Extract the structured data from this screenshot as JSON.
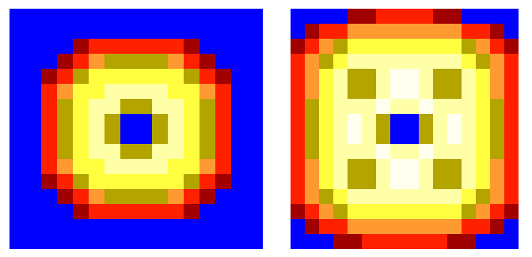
{
  "chart_data": [
    {
      "type": "heatmap",
      "tick_labels": false,
      "zlim": [
        0,
        7
      ],
      "colors": [
        "#0000ff",
        "#a00000",
        "#ff2000",
        "#ff9a30",
        "#b3a400",
        "#ffff40",
        "#ffffa8",
        "#fffff0"
      ],
      "z": [
        [
          0,
          0,
          0,
          0,
          0,
          0,
          0,
          0,
          0,
          0,
          0,
          0,
          0,
          0,
          0,
          0
        ],
        [
          0,
          0,
          0,
          0,
          0,
          0,
          0,
          0,
          0,
          0,
          0,
          0,
          0,
          0,
          0,
          0
        ],
        [
          0,
          0,
          0,
          0,
          1,
          2,
          2,
          2,
          2,
          2,
          2,
          1,
          0,
          0,
          0,
          0
        ],
        [
          0,
          0,
          0,
          1,
          2,
          3,
          4,
          4,
          4,
          4,
          3,
          2,
          1,
          0,
          0,
          0
        ],
        [
          0,
          0,
          1,
          2,
          4,
          5,
          5,
          5,
          5,
          5,
          5,
          4,
          2,
          1,
          0,
          0
        ],
        [
          0,
          0,
          2,
          3,
          5,
          5,
          6,
          6,
          6,
          6,
          5,
          5,
          3,
          2,
          0,
          0
        ],
        [
          0,
          0,
          2,
          4,
          5,
          6,
          6,
          4,
          4,
          6,
          6,
          5,
          4,
          2,
          0,
          0
        ],
        [
          0,
          0,
          2,
          4,
          5,
          6,
          4,
          0,
          0,
          4,
          6,
          5,
          4,
          2,
          0,
          0
        ],
        [
          0,
          0,
          2,
          4,
          5,
          6,
          4,
          0,
          0,
          4,
          6,
          5,
          4,
          2,
          0,
          0
        ],
        [
          0,
          0,
          2,
          4,
          5,
          6,
          6,
          4,
          4,
          6,
          6,
          5,
          4,
          2,
          0,
          0
        ],
        [
          0,
          0,
          2,
          3,
          5,
          5,
          6,
          6,
          6,
          6,
          5,
          5,
          3,
          2,
          0,
          0
        ],
        [
          0,
          0,
          1,
          2,
          4,
          5,
          5,
          5,
          5,
          5,
          5,
          4,
          2,
          1,
          0,
          0
        ],
        [
          0,
          0,
          0,
          1,
          2,
          3,
          4,
          4,
          4,
          4,
          3,
          2,
          1,
          0,
          0,
          0
        ],
        [
          0,
          0,
          0,
          0,
          1,
          2,
          2,
          2,
          2,
          2,
          2,
          1,
          0,
          0,
          0,
          0
        ],
        [
          0,
          0,
          0,
          0,
          0,
          0,
          0,
          0,
          0,
          0,
          0,
          0,
          0,
          0,
          0,
          0
        ],
        [
          0,
          0,
          0,
          0,
          0,
          0,
          0,
          0,
          0,
          0,
          0,
          0,
          0,
          0,
          0,
          0
        ]
      ]
    },
    {
      "type": "heatmap",
      "tick_labels": false,
      "zlim": [
        0,
        7
      ],
      "colors": [
        "#0000ff",
        "#a00000",
        "#ff2000",
        "#ff9a30",
        "#b3a400",
        "#ffff40",
        "#ffffa8",
        "#fffff0"
      ],
      "z": [
        [
          0,
          0,
          0,
          0,
          1,
          1,
          2,
          2,
          2,
          2,
          1,
          1,
          0,
          0,
          0,
          0
        ],
        [
          0,
          1,
          2,
          2,
          3,
          3,
          3,
          3,
          3,
          3,
          3,
          3,
          2,
          2,
          1,
          0
        ],
        [
          1,
          2,
          3,
          4,
          5,
          5,
          5,
          5,
          5,
          5,
          5,
          5,
          4,
          3,
          2,
          1
        ],
        [
          2,
          3,
          4,
          5,
          6,
          6,
          6,
          6,
          6,
          6,
          6,
          6,
          5,
          4,
          3,
          2
        ],
        [
          2,
          3,
          5,
          6,
          4,
          4,
          6,
          7,
          7,
          6,
          4,
          4,
          6,
          5,
          3,
          2
        ],
        [
          2,
          3,
          5,
          6,
          4,
          4,
          6,
          7,
          7,
          6,
          4,
          4,
          6,
          5,
          3,
          2
        ],
        [
          2,
          4,
          5,
          6,
          6,
          6,
          7,
          6,
          6,
          7,
          6,
          6,
          6,
          5,
          4,
          2
        ],
        [
          2,
          4,
          5,
          6,
          7,
          6,
          4,
          0,
          0,
          4,
          6,
          7,
          6,
          5,
          4,
          2
        ],
        [
          2,
          4,
          5,
          6,
          7,
          6,
          4,
          0,
          0,
          4,
          6,
          7,
          6,
          5,
          4,
          2
        ],
        [
          2,
          4,
          5,
          6,
          6,
          6,
          7,
          6,
          6,
          7,
          6,
          6,
          6,
          5,
          4,
          2
        ],
        [
          2,
          3,
          5,
          6,
          4,
          4,
          6,
          7,
          7,
          6,
          4,
          4,
          6,
          5,
          3,
          2
        ],
        [
          2,
          3,
          5,
          6,
          4,
          4,
          6,
          7,
          7,
          6,
          4,
          4,
          6,
          5,
          3,
          2
        ],
        [
          2,
          3,
          4,
          5,
          6,
          6,
          6,
          6,
          6,
          6,
          6,
          6,
          5,
          4,
          3,
          2
        ],
        [
          1,
          2,
          3,
          4,
          5,
          5,
          5,
          5,
          5,
          5,
          5,
          5,
          4,
          3,
          2,
          1
        ],
        [
          0,
          1,
          2,
          2,
          3,
          3,
          3,
          3,
          3,
          3,
          3,
          3,
          2,
          2,
          1,
          0
        ],
        [
          0,
          0,
          0,
          1,
          1,
          2,
          2,
          2,
          2,
          2,
          2,
          1,
          1,
          0,
          0,
          0
        ]
      ]
    }
  ]
}
